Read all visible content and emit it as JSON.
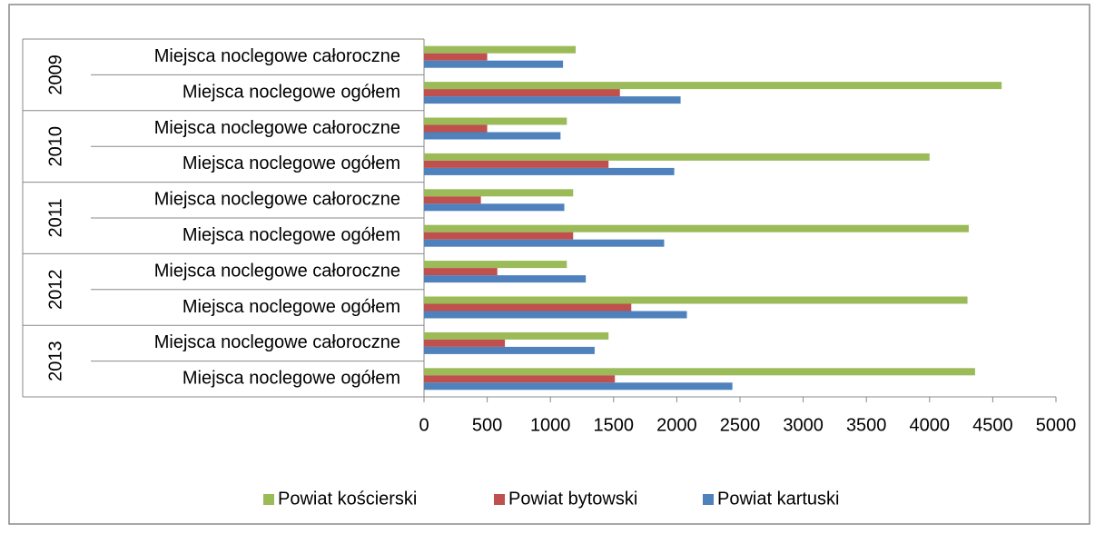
{
  "chart_data": {
    "type": "bar",
    "orientation": "horizontal",
    "groups": [
      "2009",
      "2010",
      "2011",
      "2012",
      "2013"
    ],
    "categories": [
      "Miejsca noclegowe całoroczne",
      "Miejsca noclegowe ogółem",
      "Miejsca noclegowe całoroczne",
      "Miejsca noclegowe ogółem",
      "Miejsca noclegowe całoroczne",
      "Miejsca noclegowe ogółem",
      "Miejsca noclegowe całoroczne",
      "Miejsca noclegowe ogółem",
      "Miejsca noclegowe całoroczne",
      "Miejsca noclegowe ogółem"
    ],
    "series": [
      {
        "name": "Powiat kościerski",
        "color": "#9bbb59",
        "values": [
          1200,
          4570,
          1130,
          4000,
          1180,
          4310,
          1130,
          4300,
          1460,
          4360
        ]
      },
      {
        "name": "Powiat bytowski",
        "color": "#c0504d",
        "values": [
          500,
          1550,
          500,
          1460,
          450,
          1180,
          580,
          1640,
          640,
          1510
        ]
      },
      {
        "name": "Powiat kartuski",
        "color": "#4f81bd",
        "values": [
          1100,
          2030,
          1080,
          1980,
          1110,
          1900,
          1280,
          2080,
          1350,
          2440
        ]
      }
    ],
    "xlim": [
      0,
      5000
    ],
    "xticks": [
      0,
      500,
      1000,
      1500,
      2000,
      2500,
      3000,
      3500,
      4000,
      4500,
      5000
    ],
    "legend": "bottom"
  }
}
